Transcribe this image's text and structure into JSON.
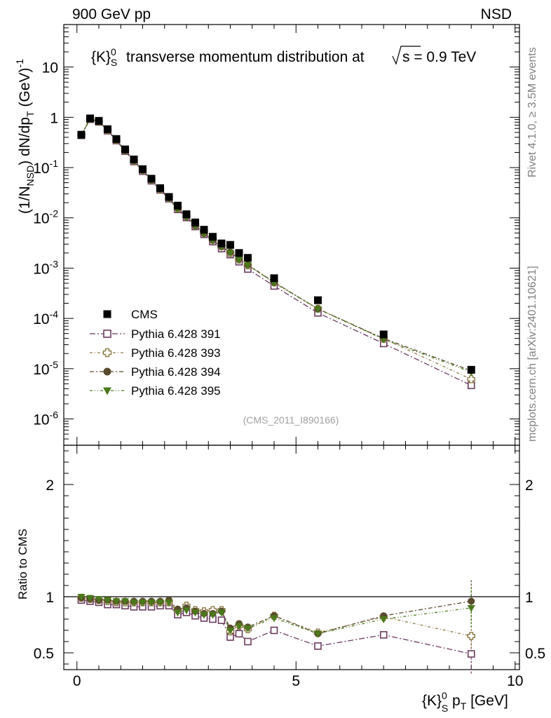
{
  "header": {
    "left": "900 GeV pp",
    "right": "NSD"
  },
  "side": {
    "top": "Rivet 4.1.0, ≥ 3.5M events",
    "bottom": "mcplots.cern.ch [arXiv:2401.10621]"
  },
  "chart_data": {
    "type": "scatter",
    "title": "{K}_S^0 transverse momentum distribution at √s = 0.9 TeV",
    "title_main": "transverse momentum distribution at",
    "title_energy": "s = 0.9 TeV",
    "analysis_label": "(CMS_2011_I890166)",
    "xlabel": "{K}_S^0 p_T [GeV]",
    "ylabel": "(1/N_NSD) dN/dp_T (GeV)^-1",
    "ylabel_ratio": "Ratio to CMS",
    "xlim": [
      -0.3,
      10.1
    ],
    "ylim": [
      3e-07,
      70
    ],
    "ratio_ylim": [
      0.35,
      2.35
    ],
    "x_ticks": [
      "0",
      "5",
      "10"
    ],
    "y_ticks": [
      "10^-6",
      "10^-5",
      "10^-4",
      "10^-3",
      "10^-2",
      "10^-1",
      "1",
      "10"
    ],
    "ratio_ticks": [
      "0.5",
      "1",
      "2"
    ],
    "x": [
      0.1,
      0.3,
      0.5,
      0.7,
      0.9,
      1.1,
      1.3,
      1.5,
      1.7,
      1.9,
      2.1,
      2.3,
      2.5,
      2.7,
      2.9,
      3.1,
      3.3,
      3.5,
      3.7,
      3.9,
      4.5,
      5.5,
      7.0,
      9.0
    ],
    "series": [
      {
        "name": "CMS",
        "marker": "square-filled",
        "color": "#000000",
        "values": [
          0.45,
          0.95,
          0.85,
          0.58,
          0.37,
          0.23,
          0.145,
          0.093,
          0.06,
          0.039,
          0.026,
          0.0175,
          0.0118,
          0.0081,
          0.0058,
          0.0042,
          0.0031,
          0.0029,
          0.002,
          0.0016,
          0.00063,
          0.00023,
          4.8e-05,
          9.5e-06
        ]
      },
      {
        "name": "Pythia 6.428 391",
        "marker": "square-open",
        "color": "#6b3a5e",
        "dash": "8,3,2,3",
        "ratio": [
          0.97,
          0.96,
          0.95,
          0.93,
          0.93,
          0.92,
          0.91,
          0.91,
          0.91,
          0.92,
          0.92,
          0.84,
          0.86,
          0.83,
          0.81,
          0.8,
          0.79,
          0.64,
          0.67,
          0.6,
          0.7,
          0.56,
          0.66,
          0.49
        ]
      },
      {
        "name": "Pythia 6.428 393",
        "marker": "cross-open",
        "color": "#8c7a44",
        "dash": "4,3,1,3",
        "ratio": [
          0.99,
          0.98,
          0.97,
          0.96,
          0.95,
          0.95,
          0.95,
          0.95,
          0.95,
          0.95,
          0.95,
          0.88,
          0.92,
          0.88,
          0.87,
          0.88,
          0.88,
          0.69,
          0.74,
          0.71,
          0.83,
          0.68,
          0.82,
          0.65
        ]
      },
      {
        "name": "Pythia 6.428 394",
        "marker": "circle-filled",
        "color": "#5a4a2e",
        "dash": "6,3,2,3",
        "ratio": [
          0.99,
          0.98,
          0.97,
          0.97,
          0.96,
          0.96,
          0.96,
          0.96,
          0.96,
          0.96,
          0.97,
          0.89,
          0.9,
          0.87,
          0.85,
          0.85,
          0.87,
          0.72,
          0.76,
          0.73,
          0.83,
          0.67,
          0.83,
          0.96
        ]
      },
      {
        "name": "Pythia 6.428 395",
        "marker": "triangle-down-filled",
        "color": "#4a7a1a",
        "dash": "4,3,1,3,1,3",
        "ratio": [
          1.0,
          0.99,
          0.98,
          0.97,
          0.96,
          0.96,
          0.95,
          0.95,
          0.95,
          0.95,
          0.95,
          0.86,
          0.88,
          0.86,
          0.84,
          0.84,
          0.86,
          0.7,
          0.74,
          0.72,
          0.81,
          0.67,
          0.8,
          0.9
        ]
      }
    ]
  }
}
